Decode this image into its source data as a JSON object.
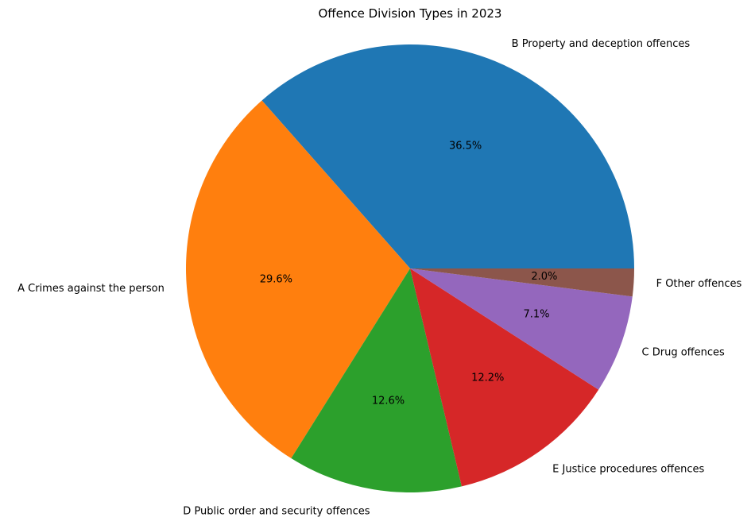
{
  "chart_data": {
    "type": "pie",
    "title": "Offence Division Types in 2023",
    "slices": [
      {
        "label": "B Property and deception offences",
        "value": 36.5,
        "pct_label": "36.5%",
        "color": "#1f77b4"
      },
      {
        "label": "A Crimes against the person",
        "value": 29.6,
        "pct_label": "29.6%",
        "color": "#ff7f0e"
      },
      {
        "label": "D Public order and security offences",
        "value": 12.6,
        "pct_label": "12.6%",
        "color": "#2ca02c"
      },
      {
        "label": "E Justice procedures offences",
        "value": 12.2,
        "pct_label": "12.2%",
        "color": "#d62728"
      },
      {
        "label": "C Drug offences",
        "value": 7.1,
        "pct_label": "7.1%",
        "color": "#9467bd"
      },
      {
        "label": "F Other offences",
        "value": 2.0,
        "pct_label": "2.0%",
        "color": "#8c564b"
      }
    ],
    "start_angle": 0,
    "direction": "counterclockwise"
  }
}
